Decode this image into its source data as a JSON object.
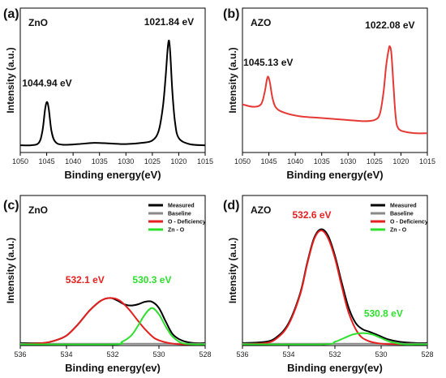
{
  "chart_data": [
    {
      "type": "line",
      "panel_label": "(a)",
      "title": "ZnO",
      "xlabel": "Binding energy(eV)",
      "ylabel": "Intensity (a.u.)",
      "xlim": [
        1050,
        1015
      ],
      "xticks": [
        1050,
        1045,
        1040,
        1035,
        1030,
        1025,
        1020,
        1015
      ],
      "ylim": [
        0,
        1.2
      ],
      "annotations": [
        {
          "text": "1044.94  eV",
          "x": 1044.94,
          "y": 0.55
        },
        {
          "text": "1021.84  eV",
          "x": 1021.84,
          "y": 1.06
        }
      ],
      "series": [
        {
          "color": "#000000",
          "x": [
            1050,
            1048,
            1046.5,
            1045.8,
            1045.3,
            1044.94,
            1044.6,
            1044.1,
            1043.4,
            1042,
            1039,
            1036,
            1033,
            1030,
            1027,
            1025,
            1023.8,
            1023,
            1022.5,
            1022.1,
            1021.84,
            1021.6,
            1021.2,
            1020.7,
            1020,
            1018,
            1015
          ],
          "values": [
            0.06,
            0.06,
            0.08,
            0.18,
            0.36,
            0.42,
            0.36,
            0.18,
            0.09,
            0.065,
            0.07,
            0.08,
            0.075,
            0.07,
            0.08,
            0.1,
            0.18,
            0.38,
            0.62,
            0.86,
            0.93,
            0.82,
            0.5,
            0.25,
            0.12,
            0.07,
            0.06
          ]
        }
      ]
    },
    {
      "type": "line",
      "panel_label": "(b)",
      "title": "AZO",
      "xlabel": "Binding energy(eV)",
      "ylabel": "Intensity (a.u.)",
      "xlim": [
        1050,
        1015
      ],
      "xticks": [
        1050,
        1045,
        1040,
        1035,
        1030,
        1025,
        1020,
        1015
      ],
      "ylim": [
        0,
        1.2
      ],
      "annotations": [
        {
          "text": "1045.13  eV",
          "x": 1045.13,
          "y": 0.72
        },
        {
          "text": "1022.08  eV",
          "x": 1022.08,
          "y": 1.03
        }
      ],
      "series": [
        {
          "color": "#e53935",
          "x": [
            1050,
            1048,
            1046.5,
            1045.8,
            1045.4,
            1045.13,
            1044.8,
            1044.3,
            1043.6,
            1042,
            1039,
            1036,
            1033,
            1030,
            1027,
            1025,
            1024,
            1023.3,
            1022.8,
            1022.3,
            1022.08,
            1021.8,
            1021.4,
            1021,
            1020.5,
            1019,
            1017,
            1015
          ],
          "values": [
            0.4,
            0.38,
            0.4,
            0.5,
            0.6,
            0.63,
            0.58,
            0.45,
            0.37,
            0.33,
            0.3,
            0.29,
            0.28,
            0.27,
            0.26,
            0.27,
            0.32,
            0.5,
            0.72,
            0.86,
            0.88,
            0.82,
            0.55,
            0.3,
            0.2,
            0.17,
            0.16,
            0.16
          ]
        }
      ]
    },
    {
      "type": "line",
      "panel_label": "(c)",
      "title": "ZnO",
      "xlabel": "Binding energy(ev)",
      "ylabel": "Intensity (a.u.)",
      "xlim": [
        536,
        528
      ],
      "xticks": [
        536,
        534,
        532,
        530,
        528
      ],
      "ylim": [
        0,
        1.2
      ],
      "legend": [
        "Measured",
        "Baseline",
        "O - Deficiency",
        "Zn - O"
      ],
      "annotations": [
        {
          "text": "532.1  eV",
          "x": 533.2,
          "y": 0.5,
          "color": "#e5201f"
        },
        {
          "text": "530.3  eV",
          "x": 530.3,
          "y": 0.5,
          "color": "#2ee02e"
        }
      ],
      "series": [
        {
          "name": "Measured",
          "color": "#000000",
          "x": [
            536,
            535,
            534.5,
            534,
            533.5,
            533,
            532.5,
            532.1,
            531.8,
            531.5,
            531.2,
            530.9,
            530.6,
            530.3,
            530,
            529.7,
            529.4,
            529,
            528.5,
            528
          ],
          "values": [
            0.02,
            0.02,
            0.04,
            0.08,
            0.17,
            0.28,
            0.36,
            0.38,
            0.36,
            0.33,
            0.32,
            0.33,
            0.35,
            0.35,
            0.3,
            0.19,
            0.09,
            0.04,
            0.02,
            0.02
          ]
        },
        {
          "name": "Baseline",
          "color": "#888888",
          "x": [
            536,
            528
          ],
          "values": [
            0.015,
            0.015
          ]
        },
        {
          "name": "O - Deficiency",
          "color": "#e5201f",
          "x": [
            536,
            535,
            534.5,
            534,
            533.5,
            533,
            532.5,
            532.1,
            531.7,
            531.3,
            531,
            530.6,
            530.2,
            529.8,
            529.4,
            529,
            528
          ],
          "values": [
            0.01,
            0.02,
            0.04,
            0.08,
            0.17,
            0.28,
            0.36,
            0.38,
            0.36,
            0.29,
            0.22,
            0.13,
            0.06,
            0.03,
            0.015,
            0.01,
            0.01
          ]
        },
        {
          "name": "Zn - O",
          "color": "#2ee02e",
          "x": [
            536,
            532,
            531.6,
            531.2,
            530.9,
            530.6,
            530.3,
            530,
            529.7,
            529.4,
            529,
            528.5,
            528
          ],
          "values": [
            0.01,
            0.01,
            0.03,
            0.08,
            0.16,
            0.25,
            0.3,
            0.25,
            0.15,
            0.07,
            0.02,
            0.01,
            0.01
          ]
        }
      ]
    },
    {
      "type": "line",
      "panel_label": "(d)",
      "title": "AZO",
      "xlabel": "Binding energy(ev)",
      "ylabel": "Intensity (a.u.)",
      "xlim": [
        536,
        528
      ],
      "xticks": [
        536,
        534,
        532,
        530,
        528
      ],
      "ylim": [
        0,
        1.2
      ],
      "legend": [
        "Measured",
        "Baseline",
        "O - Deficiency",
        "Zn - O"
      ],
      "annotations": [
        {
          "text": "532.6  eV",
          "x": 533.0,
          "y": 1.02,
          "color": "#e5201f"
        },
        {
          "text": "530.8  eV",
          "x": 529.9,
          "y": 0.23,
          "color": "#2ee02e"
        }
      ],
      "series": [
        {
          "name": "Measured",
          "color": "#000000",
          "x": [
            536,
            535,
            534.5,
            534,
            533.5,
            533.2,
            532.9,
            532.6,
            532.3,
            532,
            531.7,
            531.4,
            531.1,
            530.8,
            530.5,
            530.1,
            529.7,
            529.2,
            528.5,
            528
          ],
          "values": [
            0.02,
            0.03,
            0.07,
            0.18,
            0.42,
            0.66,
            0.86,
            0.93,
            0.88,
            0.72,
            0.5,
            0.3,
            0.18,
            0.13,
            0.11,
            0.08,
            0.05,
            0.03,
            0.02,
            0.02
          ]
        },
        {
          "name": "Baseline",
          "color": "#888888",
          "x": [
            536,
            528
          ],
          "values": [
            0.015,
            0.015
          ]
        },
        {
          "name": "O - Deficiency",
          "color": "#e5201f",
          "x": [
            536,
            535,
            534.5,
            534,
            533.5,
            533.2,
            532.9,
            532.6,
            532.3,
            532,
            531.7,
            531.4,
            531,
            530.6,
            530,
            529,
            528
          ],
          "values": [
            0.01,
            0.02,
            0.06,
            0.17,
            0.41,
            0.65,
            0.85,
            0.92,
            0.86,
            0.7,
            0.47,
            0.26,
            0.1,
            0.04,
            0.015,
            0.01,
            0.01
          ]
        },
        {
          "name": "Zn - O",
          "color": "#2ee02e",
          "x": [
            536,
            532.5,
            532,
            531.6,
            531.2,
            530.8,
            530.4,
            530,
            529.6,
            529,
            528.5,
            528
          ],
          "values": [
            0.01,
            0.01,
            0.03,
            0.06,
            0.09,
            0.1,
            0.09,
            0.06,
            0.03,
            0.01,
            0.01,
            0.01
          ]
        }
      ]
    }
  ]
}
